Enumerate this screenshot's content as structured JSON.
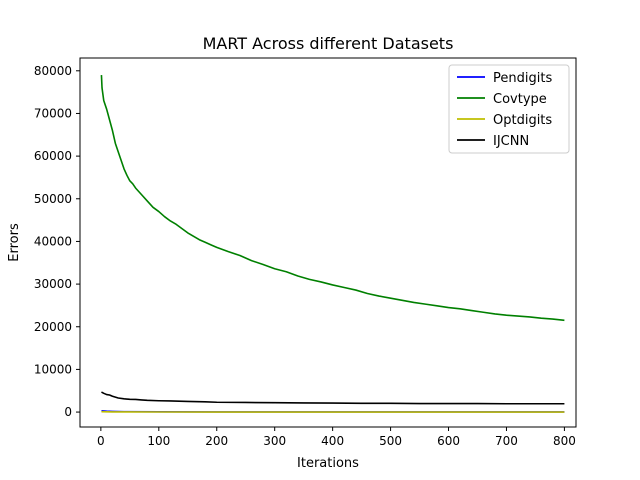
{
  "chart_data": {
    "type": "line",
    "title": "MART Across different Datasets",
    "xlabel": "Iterations",
    "ylabel": "Errors",
    "xlim": [
      -36,
      820
    ],
    "ylim": [
      -3500,
      83000
    ],
    "xticks": [
      0,
      100,
      200,
      300,
      400,
      500,
      600,
      700,
      800
    ],
    "yticks": [
      0,
      10000,
      20000,
      30000,
      40000,
      50000,
      60000,
      70000,
      80000
    ],
    "legend_position": "top-right",
    "grid": false,
    "series": [
      {
        "name": "Pendigits",
        "color": "#0000ff",
        "x": [
          1,
          10,
          20,
          40,
          100,
          200,
          400,
          600,
          800
        ],
        "y": [
          300,
          200,
          150,
          100,
          60,
          40,
          30,
          25,
          20
        ]
      },
      {
        "name": "Covtype",
        "color": "#008000",
        "x": [
          1,
          2,
          5,
          10,
          15,
          20,
          25,
          30,
          35,
          40,
          45,
          50,
          55,
          60,
          70,
          80,
          90,
          100,
          110,
          120,
          130,
          140,
          150,
          160,
          170,
          180,
          190,
          200,
          220,
          240,
          260,
          280,
          300,
          320,
          340,
          360,
          380,
          400,
          420,
          440,
          460,
          480,
          500,
          520,
          540,
          560,
          580,
          600,
          620,
          640,
          660,
          680,
          700,
          720,
          740,
          760,
          780,
          800
        ],
        "y": [
          79000,
          76000,
          73000,
          71000,
          68500,
          66000,
          63000,
          61000,
          59000,
          57000,
          55500,
          54200,
          53500,
          52500,
          51000,
          49500,
          48000,
          47000,
          45800,
          44800,
          44000,
          43000,
          42000,
          41200,
          40400,
          39800,
          39200,
          38600,
          37600,
          36700,
          35500,
          34600,
          33600,
          32900,
          31900,
          31100,
          30500,
          29800,
          29200,
          28600,
          27800,
          27200,
          26700,
          26200,
          25700,
          25300,
          24900,
          24500,
          24200,
          23800,
          23400,
          23000,
          22700,
          22500,
          22300,
          22000,
          21800,
          21500
        ]
      },
      {
        "name": "Optdigits",
        "color": "#bfbf00",
        "x": [
          1,
          10,
          20,
          40,
          100,
          200,
          400,
          600,
          800
        ],
        "y": [
          100,
          60,
          40,
          25,
          15,
          10,
          8,
          6,
          5
        ]
      },
      {
        "name": "IJCNN",
        "color": "#000000",
        "x": [
          1,
          5,
          10,
          15,
          20,
          25,
          30,
          40,
          50,
          60,
          70,
          80,
          100,
          120,
          150,
          180,
          200,
          250,
          300,
          350,
          400,
          450,
          500,
          550,
          600,
          650,
          700,
          750,
          800
        ],
        "y": [
          4700,
          4400,
          4100,
          4000,
          3700,
          3500,
          3300,
          3100,
          3000,
          2950,
          2850,
          2750,
          2650,
          2600,
          2500,
          2400,
          2300,
          2250,
          2200,
          2150,
          2100,
          2050,
          2050,
          2000,
          2000,
          2000,
          1950,
          1950,
          1950
        ]
      }
    ]
  }
}
